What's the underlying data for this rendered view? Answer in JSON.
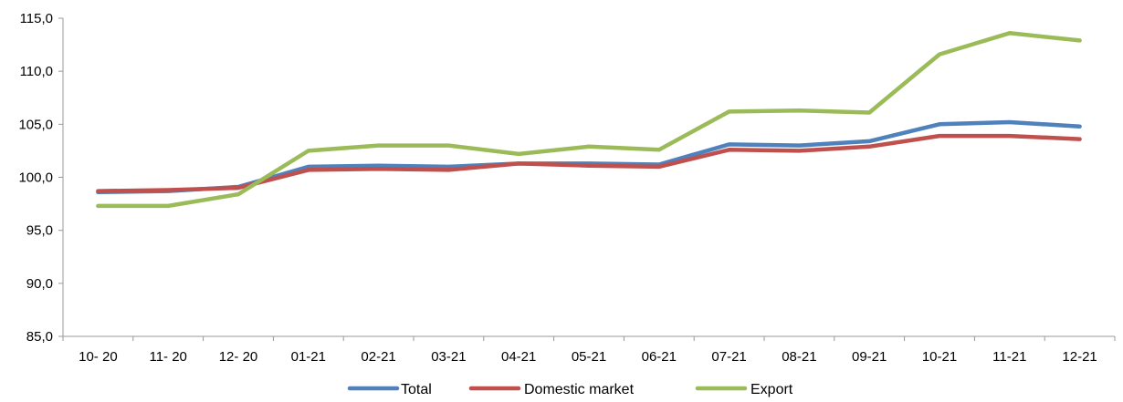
{
  "chart_data": {
    "type": "line",
    "title": "",
    "xlabel": "",
    "ylabel": "",
    "categories": [
      "10- 20",
      "11- 20",
      "12- 20",
      "01-21",
      "02-21",
      "03-21",
      "04-21",
      "05-21",
      "06-21",
      "07-21",
      "08-21",
      "09-21",
      "10-21",
      "11-21",
      "12-21"
    ],
    "y_ticks": [
      "85,0",
      "90,0",
      "95,0",
      "100,0",
      "105,0",
      "110,0",
      "115,0"
    ],
    "ylim": [
      85,
      115
    ],
    "grid": false,
    "legend_position": "bottom",
    "series": [
      {
        "name": "Total",
        "color": "#4f81bd",
        "values": [
          98.6,
          98.7,
          99.1,
          101.0,
          101.1,
          101.0,
          101.3,
          101.3,
          101.2,
          103.1,
          103.0,
          103.4,
          105.0,
          105.2,
          104.8
        ]
      },
      {
        "name": "Domestic market",
        "color": "#c0504d",
        "values": [
          98.7,
          98.8,
          99.0,
          100.7,
          100.8,
          100.7,
          101.3,
          101.1,
          101.0,
          102.6,
          102.5,
          102.9,
          103.9,
          103.9,
          103.6
        ]
      },
      {
        "name": "Export",
        "color": "#9bbb59",
        "values": [
          97.3,
          97.3,
          98.4,
          102.5,
          103.0,
          103.0,
          102.2,
          102.9,
          102.6,
          106.2,
          106.3,
          106.1,
          111.6,
          113.6,
          112.9
        ]
      }
    ]
  }
}
